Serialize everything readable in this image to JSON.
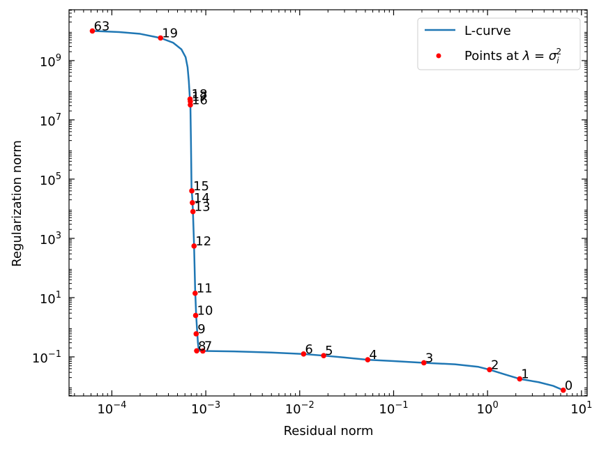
{
  "chart_data": {
    "type": "line",
    "title": "",
    "xlabel": "Residual norm",
    "ylabel": "Regularization norm",
    "xscale": "log",
    "yscale": "log",
    "xlim": [
      3.5e-05,
      11.5
    ],
    "ylim": [
      0.0048,
      52000000000.0
    ],
    "grid": false,
    "legend_position": "top-right",
    "x_ticks": [
      {
        "value": 0.0001,
        "base": "10",
        "exp": "−4"
      },
      {
        "value": 0.001,
        "base": "10",
        "exp": "−3"
      },
      {
        "value": 0.01,
        "base": "10",
        "exp": "−2"
      },
      {
        "value": 0.1,
        "base": "10",
        "exp": "−1"
      },
      {
        "value": 1,
        "base": "10",
        "exp": "0"
      },
      {
        "value": 10,
        "base": "10",
        "exp": "1"
      }
    ],
    "y_ticks": [
      {
        "value": 0.1,
        "base": "10",
        "exp": "−1"
      },
      {
        "value": 10,
        "base": "10",
        "exp": "1"
      },
      {
        "value": 1000,
        "base": "10",
        "exp": "3"
      },
      {
        "value": 100000,
        "base": "10",
        "exp": "5"
      },
      {
        "value": 10000000,
        "base": "10",
        "exp": "7"
      },
      {
        "value": 1000000000,
        "base": "10",
        "exp": "9"
      }
    ],
    "series": [
      {
        "name": "L-curve",
        "kind": "line",
        "color": "#1f77b4",
        "points": [
          [
            6.2e-05,
            10000000000.0
          ],
          [
            0.00012,
            9200000000.0
          ],
          [
            0.0002,
            8000000000.0
          ],
          [
            0.00033,
            5800000000.0
          ],
          [
            0.00045,
            4000000000.0
          ],
          [
            0.00055,
            2400000000.0
          ],
          [
            0.00061,
            1300000000.0
          ],
          [
            0.00064,
            600000000.0
          ],
          [
            0.00066,
            200000000.0
          ],
          [
            0.000675,
            60000000.0
          ],
          [
            0.000685,
            40000000.0
          ],
          [
            0.000695,
            2000000.0
          ],
          [
            0.000705,
            50000.0
          ],
          [
            0.00072,
            20000.0
          ],
          [
            0.00073,
            8000.0
          ],
          [
            0.00075,
            600
          ],
          [
            0.00077,
            20
          ],
          [
            0.00079,
            2.5
          ],
          [
            0.00081,
            0.7
          ],
          [
            0.000825,
            0.3
          ],
          [
            0.00084,
            0.18
          ],
          [
            0.00087,
            0.16
          ],
          [
            0.00093,
            0.158
          ],
          [
            0.0011,
            0.157
          ],
          [
            0.002,
            0.153
          ],
          [
            0.005,
            0.14
          ],
          [
            0.011,
            0.125
          ],
          [
            0.018,
            0.11
          ],
          [
            0.03,
            0.095
          ],
          [
            0.053,
            0.08
          ],
          [
            0.1,
            0.072
          ],
          [
            0.21,
            0.063
          ],
          [
            0.45,
            0.056
          ],
          [
            0.8,
            0.046
          ],
          [
            1.05,
            0.037
          ],
          [
            1.5,
            0.026
          ],
          [
            2.2,
            0.018
          ],
          [
            3.5,
            0.014
          ],
          [
            5.0,
            0.0105
          ],
          [
            6.4,
            0.0075
          ]
        ]
      },
      {
        "name": "Points at λ = σᵢ²",
        "kind": "scatter",
        "color": "#ff0000",
        "points": [
          {
            "label": "0",
            "x": 6.4,
            "y": 0.0075
          },
          {
            "label": "1",
            "x": 2.2,
            "y": 0.018
          },
          {
            "label": "2",
            "x": 1.05,
            "y": 0.037
          },
          {
            "label": "3",
            "x": 0.21,
            "y": 0.063
          },
          {
            "label": "4",
            "x": 0.053,
            "y": 0.08
          },
          {
            "label": "5",
            "x": 0.018,
            "y": 0.11
          },
          {
            "label": "6",
            "x": 0.011,
            "y": 0.125
          },
          {
            "label": "7",
            "x": 0.00093,
            "y": 0.158
          },
          {
            "label": "8",
            "x": 0.0008,
            "y": 0.16
          },
          {
            "label": "9",
            "x": 0.00079,
            "y": 0.6
          },
          {
            "label": "10",
            "x": 0.00078,
            "y": 2.5
          },
          {
            "label": "11",
            "x": 0.00077,
            "y": 14
          },
          {
            "label": "12",
            "x": 0.00075,
            "y": 550
          },
          {
            "label": "13",
            "x": 0.00073,
            "y": 8000
          },
          {
            "label": "14",
            "x": 0.00072,
            "y": 16000
          },
          {
            "label": "15",
            "x": 0.00071,
            "y": 40000
          },
          {
            "label": "16",
            "x": 0.000685,
            "y": 32000000
          },
          {
            "label": "17",
            "x": 0.000685,
            "y": 42000000
          },
          {
            "label": "18",
            "x": 0.00068,
            "y": 50000000
          },
          {
            "label": "19",
            "x": 0.00033,
            "y": 5800000000
          },
          {
            "label": "63",
            "x": 6.2e-05,
            "y": 10000000000
          }
        ]
      }
    ]
  },
  "legend": {
    "line_label": "L-curve",
    "scatter_label_prefix": "Points at ",
    "scatter_label_math": "λ = σ",
    "scatter_label_sub": "i",
    "scatter_label_sup": "2"
  }
}
